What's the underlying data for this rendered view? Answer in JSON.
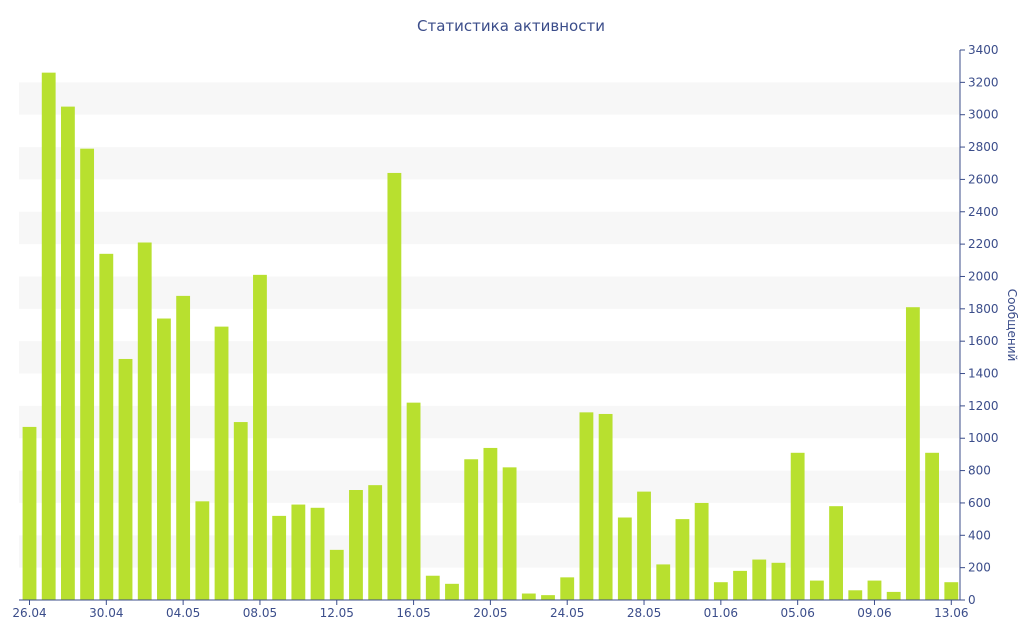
{
  "chart_data": {
    "type": "bar",
    "title": "Статистика активности",
    "xlabel": "",
    "ylabel": "Сообщений",
    "ylim": [
      0,
      3400
    ],
    "y_ticks": [
      0,
      200,
      400,
      600,
      800,
      1000,
      1200,
      1400,
      1600,
      1800,
      2000,
      2200,
      2400,
      2600,
      2800,
      3000,
      3200,
      3400
    ],
    "y_axis_side": "right",
    "grid": "alternating horizontal bands",
    "bar_color": "#b8e02f",
    "band_color": "#f7f7f7",
    "text_color": "#3b4d8a",
    "x_tick_labels": [
      "26.04",
      "30.04",
      "04.05",
      "08.05",
      "12.05",
      "16.05",
      "20.05",
      "24.05",
      "28.05",
      "01.06",
      "05.06",
      "09.06",
      "13.06"
    ],
    "x_tick_every": 4,
    "categories": [
      "26.04",
      "27.04",
      "28.04",
      "29.04",
      "30.04",
      "01.05",
      "02.05",
      "03.05",
      "04.05",
      "05.05",
      "06.05",
      "07.05",
      "08.05",
      "09.05",
      "10.05",
      "11.05",
      "12.05",
      "13.05",
      "14.05",
      "15.05",
      "16.05",
      "17.05",
      "18.05",
      "19.05",
      "20.05",
      "21.05",
      "22.05",
      "23.05",
      "24.05",
      "25.05",
      "26.05",
      "27.05",
      "28.05",
      "29.05",
      "30.05",
      "31.05",
      "01.06",
      "02.06",
      "03.06",
      "04.06",
      "05.06",
      "06.06",
      "07.06",
      "08.06",
      "09.06",
      "10.06",
      "11.06",
      "12.06",
      "13.06"
    ],
    "values": [
      1070,
      3260,
      3050,
      2790,
      2140,
      1490,
      2210,
      1740,
      1880,
      610,
      1690,
      1100,
      2010,
      520,
      590,
      570,
      310,
      680,
      710,
      2640,
      1220,
      150,
      100,
      870,
      940,
      820,
      40,
      30,
      140,
      1160,
      1150,
      510,
      670,
      220,
      500,
      600,
      110,
      180,
      250,
      230,
      910,
      120,
      580,
      60,
      120,
      50,
      1810,
      910,
      110
    ]
  }
}
